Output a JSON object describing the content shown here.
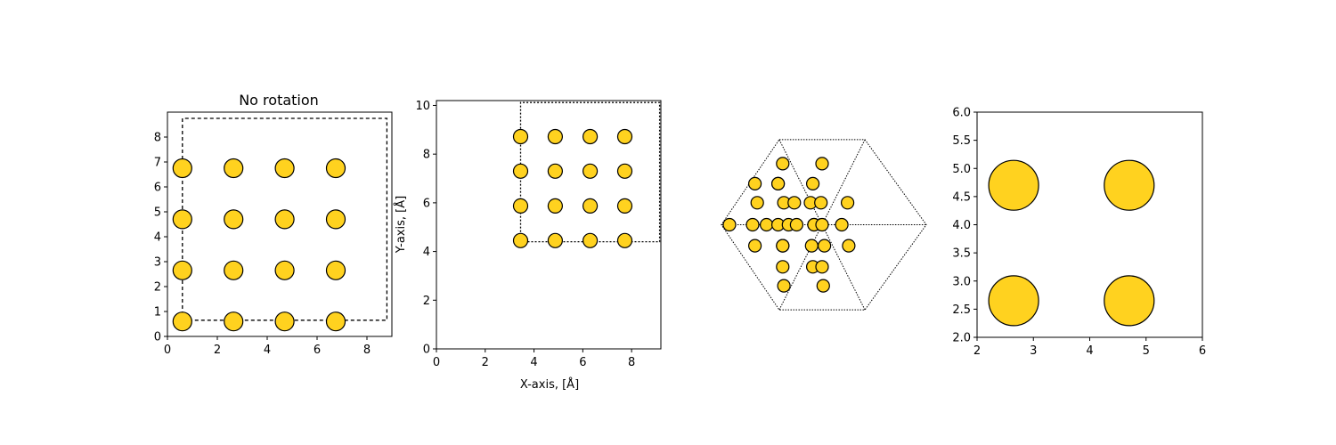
{
  "figure": {
    "marker_color": "#ffd21f",
    "edge_color": "#000000",
    "background": "#ffffff"
  },
  "chart_data": [
    {
      "type": "scatter",
      "title": "No rotation",
      "xlabel": "",
      "ylabel": "",
      "xlim": [
        0,
        9.0
      ],
      "ylim": [
        0,
        9.0
      ],
      "xticks": [
        "0",
        "2",
        "4",
        "6",
        "8"
      ],
      "yticks": [
        "0",
        "1",
        "2",
        "3",
        "4",
        "5",
        "6",
        "7",
        "8"
      ],
      "xtick_values": [
        0,
        2,
        4,
        6,
        8
      ],
      "ytick_values": [
        0,
        1,
        2,
        3,
        4,
        5,
        6,
        7,
        8
      ],
      "marker_size": 1.0,
      "x": [
        0.6,
        2.65,
        4.7,
        6.75,
        0.6,
        2.65,
        4.7,
        6.75,
        0.6,
        2.65,
        4.7,
        6.75,
        0.6,
        2.65,
        4.7,
        6.75
      ],
      "y": [
        0.6,
        0.6,
        0.6,
        0.6,
        2.65,
        2.65,
        2.65,
        2.65,
        4.7,
        4.7,
        4.7,
        4.7,
        6.75,
        6.75,
        6.75,
        6.75
      ],
      "cell_outline": [
        [
          0.6,
          0.65
        ],
        [
          8.8,
          0.65
        ],
        [
          8.8,
          8.75
        ],
        [
          0.6,
          8.75
        ]
      ],
      "show_axes": true
    },
    {
      "type": "scatter",
      "title": "",
      "xlabel": "X-axis, [Å]",
      "ylabel": "Y-axis, [Å]",
      "xlim": [
        0,
        9.2
      ],
      "ylim": [
        0,
        10.2
      ],
      "xticks": [
        "0",
        "2",
        "4",
        "6",
        "8"
      ],
      "yticks": [
        "0",
        "2",
        "4",
        "6",
        "8",
        "10"
      ],
      "xtick_values": [
        0,
        2,
        4,
        6,
        8
      ],
      "ytick_values": [
        0,
        2,
        4,
        6,
        8,
        10
      ],
      "marker_size": 0.72,
      "x": [
        3.45,
        4.87,
        6.3,
        7.72,
        3.45,
        4.87,
        6.3,
        7.72,
        3.45,
        4.87,
        6.3,
        7.72,
        3.45,
        4.87,
        6.3,
        7.72
      ],
      "y": [
        4.45,
        4.45,
        4.45,
        4.45,
        5.87,
        5.87,
        5.87,
        5.87,
        7.3,
        7.3,
        7.3,
        7.3,
        8.72,
        8.72,
        8.72,
        8.72
      ],
      "cell_outline": [
        [
          3.45,
          4.4
        ],
        [
          9.15,
          4.4
        ],
        [
          9.15,
          10.12
        ],
        [
          3.45,
          10.12
        ]
      ],
      "show_axes": true
    },
    {
      "type": "scatter",
      "title": "",
      "xlabel": "",
      "ylabel": "",
      "xlim": [
        0,
        10
      ],
      "ylim": [
        0,
        10
      ],
      "xticks": [],
      "yticks": [],
      "marker_size": 0.6,
      "x": [
        1.0,
        2.1,
        2.2,
        2.0,
        2.1,
        2.6,
        3.1,
        3.3,
        3.35,
        3.1,
        3.3,
        3.55,
        3.3,
        3.35,
        3.1,
        3.3,
        3.8,
        3.9,
        4.5,
        4.65,
        4.55,
        4.6,
        4.6,
        4.65,
        4.95,
        5.0,
        5.1,
        5.05,
        5.0,
        5.0,
        5.85,
        6.1,
        6.15
      ],
      "y": [
        5.0,
        7.05,
        6.1,
        5.0,
        3.95,
        5.0,
        7.05,
        8.05,
        6.1,
        5.0,
        3.95,
        5.0,
        2.9,
        1.95,
        7.05,
        3.95,
        6.1,
        5.0,
        6.1,
        5.0,
        3.95,
        7.05,
        2.9,
        5.0,
        6.1,
        8.05,
        3.95,
        1.95,
        5.0,
        2.9,
        5.0,
        6.1,
        3.95
      ],
      "hexagon": [
        [
          3.15,
          9.25
        ],
        [
          6.85,
          9.25
        ],
        [
          9.5,
          5.0
        ],
        [
          6.85,
          0.75
        ],
        [
          3.15,
          0.75
        ],
        [
          0.65,
          5.0
        ]
      ],
      "hex_inner_lines": [
        [
          [
            3.15,
            9.25
          ],
          [
            5.0,
            5.0
          ]
        ],
        [
          [
            6.85,
            9.25
          ],
          [
            5.0,
            5.0
          ]
        ],
        [
          [
            3.15,
            0.75
          ],
          [
            5.0,
            5.0
          ]
        ],
        [
          [
            6.85,
            0.75
          ],
          [
            5.0,
            5.0
          ]
        ],
        [
          [
            0.65,
            5.0
          ],
          [
            9.5,
            5.0
          ]
        ]
      ],
      "show_axes": false
    },
    {
      "type": "scatter",
      "title": "",
      "xlabel": "",
      "ylabel": "",
      "xlim": [
        2,
        6
      ],
      "ylim": [
        2,
        6
      ],
      "xticks": [
        "2",
        "3",
        "4",
        "5",
        "6"
      ],
      "yticks": [
        "2.0",
        "2.5",
        "3.0",
        "3.5",
        "4.0",
        "4.5",
        "5.0",
        "5.5",
        "6.0"
      ],
      "xtick_values": [
        2,
        3,
        4,
        5,
        6
      ],
      "ytick_values": [
        2.0,
        2.5,
        3.0,
        3.5,
        4.0,
        4.5,
        5.0,
        5.5,
        6.0
      ],
      "marker_size": 2.0,
      "x": [
        2.65,
        4.7,
        2.65,
        4.7
      ],
      "y": [
        2.65,
        2.65,
        4.7,
        4.7
      ],
      "show_axes": true
    }
  ]
}
